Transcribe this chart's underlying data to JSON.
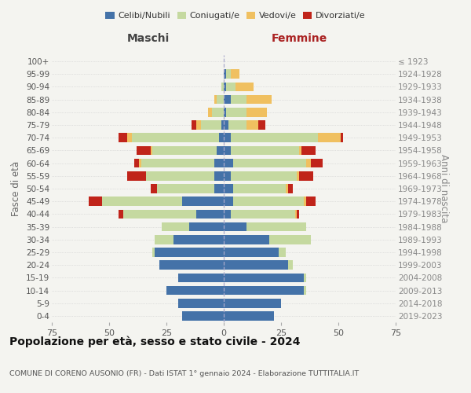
{
  "age_groups": [
    "0-4",
    "5-9",
    "10-14",
    "15-19",
    "20-24",
    "25-29",
    "30-34",
    "35-39",
    "40-44",
    "45-49",
    "50-54",
    "55-59",
    "60-64",
    "65-69",
    "70-74",
    "75-79",
    "80-84",
    "85-89",
    "90-94",
    "95-99",
    "100+"
  ],
  "birth_years": [
    "2019-2023",
    "2014-2018",
    "2009-2013",
    "2004-2008",
    "1999-2003",
    "1994-1998",
    "1989-1993",
    "1984-1988",
    "1979-1983",
    "1974-1978",
    "1969-1973",
    "1964-1968",
    "1959-1963",
    "1954-1958",
    "1949-1953",
    "1944-1948",
    "1939-1943",
    "1934-1938",
    "1929-1933",
    "1924-1928",
    "≤ 1923"
  ],
  "males": {
    "celibi": [
      18,
      20,
      25,
      20,
      28,
      30,
      22,
      15,
      12,
      18,
      4,
      4,
      4,
      3,
      2,
      1,
      0,
      0,
      0,
      0,
      0
    ],
    "coniugati": [
      0,
      0,
      0,
      0,
      0,
      1,
      8,
      12,
      32,
      35,
      25,
      30,
      32,
      28,
      38,
      9,
      5,
      3,
      1,
      0,
      0
    ],
    "vedovi": [
      0,
      0,
      0,
      0,
      0,
      0,
      0,
      0,
      0,
      0,
      0,
      0,
      1,
      1,
      2,
      2,
      2,
      1,
      0,
      0,
      0
    ],
    "divorziati": [
      0,
      0,
      0,
      0,
      0,
      0,
      0,
      0,
      2,
      6,
      3,
      8,
      2,
      6,
      4,
      2,
      0,
      0,
      0,
      0,
      0
    ]
  },
  "females": {
    "nubili": [
      22,
      25,
      35,
      35,
      28,
      24,
      20,
      10,
      3,
      4,
      4,
      3,
      4,
      3,
      3,
      2,
      1,
      3,
      1,
      1,
      0
    ],
    "coniugate": [
      0,
      0,
      1,
      1,
      2,
      3,
      18,
      26,
      28,
      31,
      23,
      29,
      32,
      30,
      38,
      8,
      9,
      7,
      4,
      2,
      0
    ],
    "vedove": [
      0,
      0,
      0,
      0,
      0,
      0,
      0,
      0,
      1,
      1,
      1,
      1,
      2,
      1,
      10,
      5,
      9,
      11,
      8,
      4,
      0
    ],
    "divorziate": [
      0,
      0,
      0,
      0,
      0,
      0,
      0,
      0,
      1,
      4,
      2,
      6,
      5,
      6,
      1,
      3,
      0,
      0,
      0,
      0,
      0
    ]
  },
  "colors": {
    "celibi": "#4472a8",
    "coniugati": "#c5d9a0",
    "vedovi": "#f0c060",
    "divorziati": "#c0241a"
  },
  "xlim": 75,
  "title": "Popolazione per età, sesso e stato civile - 2024",
  "subtitle": "COMUNE DI CORENO AUSONIO (FR) - Dati ISTAT 1° gennaio 2024 - Elaborazione TUTTITALIA.IT",
  "ylabel_left": "Fasce di età",
  "ylabel_right": "Anni di nascita",
  "xlabel_left": "Maschi",
  "xlabel_right": "Femmine",
  "legend_labels": [
    "Celibi/Nubili",
    "Coniugati/e",
    "Vedovi/e",
    "Divorziati/e"
  ],
  "background_color": "#f4f4f0",
  "maschi_color": "#444444",
  "femmine_color": "#aa2222"
}
